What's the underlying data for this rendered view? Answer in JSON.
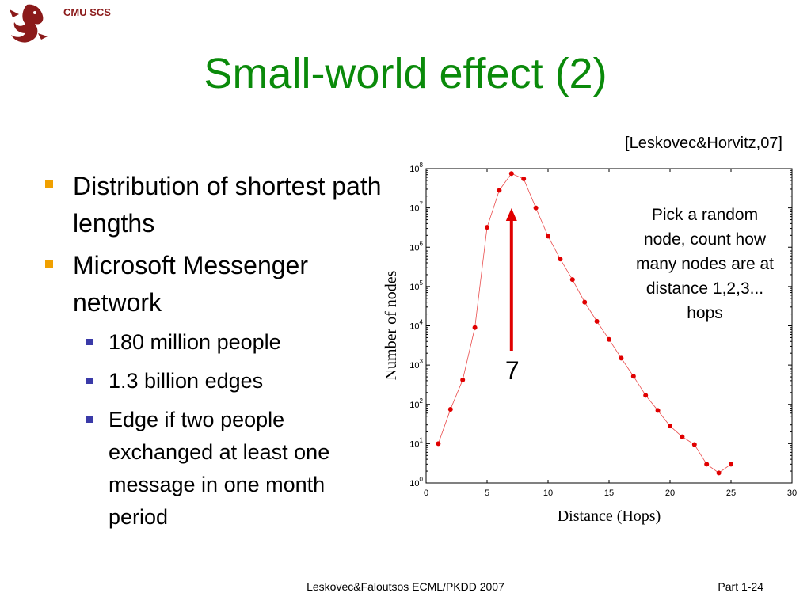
{
  "header": {
    "label": "CMU SCS"
  },
  "title": "Small-world effect (2)",
  "citation": "[Leskovec&Horvitz,07]",
  "bullets": [
    {
      "text": "Distribution of shortest path lengths"
    },
    {
      "text": "Microsoft Messenger network"
    }
  ],
  "sub_bullets": [
    {
      "text": "180 million people"
    },
    {
      "text": "1.3 billion edges"
    },
    {
      "text": "Edge if two people exchanged at least one message in one month period"
    }
  ],
  "annotation": "Pick a random node, count how many nodes are at distance 1,2,3... hops",
  "footer": {
    "center": "Leskovec&Faloutsos ECML/PKDD 2007",
    "right": "Part 1-24"
  },
  "colors": {
    "title": "#0a8a0a",
    "series": "#e00000",
    "arrow": "#e00000",
    "bullet_l1": "#f0a000",
    "bullet_l2": "#3a3aa8"
  },
  "chart_data": {
    "type": "line",
    "title": "",
    "xlabel": "Distance (Hops)",
    "ylabel": "Number of nodes",
    "xlim": [
      0,
      30
    ],
    "ylim": [
      1,
      100000000
    ],
    "yscale": "log",
    "xticks": [
      0,
      5,
      10,
      15,
      20,
      25,
      30
    ],
    "ytick_base": "10",
    "yticks_exp": [
      "0",
      "1",
      "2",
      "3",
      "4",
      "5",
      "6",
      "7",
      "8"
    ],
    "series": [
      {
        "x": [
          1,
          2,
          3,
          4,
          5,
          6,
          7,
          8,
          9,
          10,
          11,
          12,
          13,
          14,
          15,
          16,
          17,
          18,
          19,
          20,
          21,
          22,
          23,
          24,
          25
        ],
        "y": [
          10,
          75,
          420,
          9000,
          3200000,
          28000000,
          75000000,
          55000000,
          10000000,
          1900000,
          500000,
          150000,
          40000,
          13000,
          4500,
          1500,
          520,
          170,
          70,
          28,
          15,
          9.5,
          3,
          1.8,
          3
        ]
      }
    ],
    "highlight": {
      "x": 7,
      "label": "7"
    },
    "grid": false
  }
}
